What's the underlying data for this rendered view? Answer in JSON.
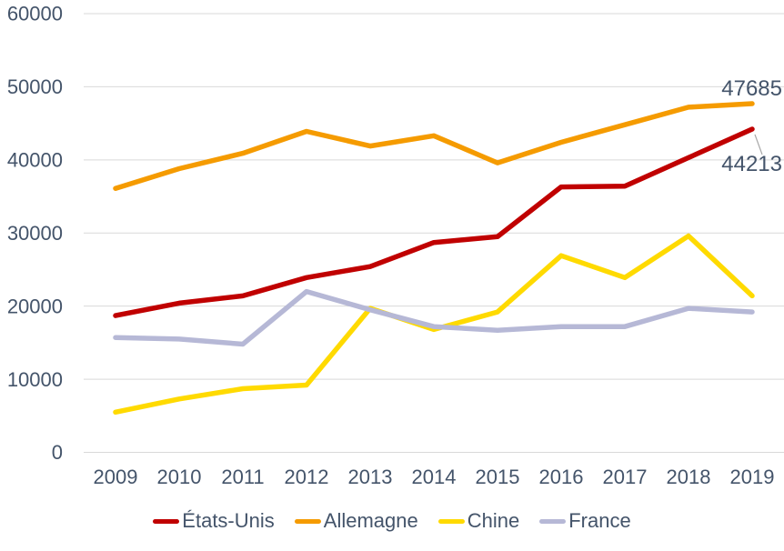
{
  "chart_data": {
    "type": "line",
    "x": [
      "2009",
      "2010",
      "2011",
      "2012",
      "2013",
      "2014",
      "2015",
      "2016",
      "2017",
      "2018",
      "2019"
    ],
    "series": [
      {
        "name": "États-Unis",
        "color": "#C00000",
        "values": [
          18700,
          20400,
          21400,
          23900,
          25400,
          28700,
          29500,
          36300,
          36400,
          40300,
          44213
        ]
      },
      {
        "name": "Allemagne",
        "color": "#F59B00",
        "values": [
          36100,
          38800,
          40900,
          43900,
          41900,
          43300,
          39600,
          42400,
          44800,
          47200,
          47685
        ]
      },
      {
        "name": "Chine",
        "color": "#FFDA00",
        "values": [
          5500,
          7300,
          8700,
          9200,
          19700,
          16800,
          19200,
          26900,
          23900,
          29600,
          21400
        ]
      },
      {
        "name": "France",
        "color": "#B6B8D6",
        "values": [
          15700,
          15500,
          14800,
          22000,
          19500,
          17200,
          16700,
          17200,
          17200,
          19700,
          19200
        ]
      }
    ],
    "title": "",
    "xlabel": "",
    "ylabel": "",
    "ylim": [
      0,
      60000
    ],
    "yticks": [
      0,
      10000,
      20000,
      30000,
      40000,
      50000,
      60000
    ],
    "ytick_labels": [
      "0",
      "10000",
      "20000",
      "30000",
      "40000",
      "50000",
      "60000"
    ],
    "grid": true,
    "legend_position": "bottom",
    "annotations": [
      {
        "text": "47685",
        "series": 1,
        "point": 10,
        "position": "above",
        "leader": false
      },
      {
        "text": "44213",
        "series": 0,
        "point": 10,
        "position": "below",
        "leader": true
      }
    ],
    "colors": {
      "axis_text": "#44546A",
      "gridline": "#D9D9D9",
      "leader_line": "#A6A6A6",
      "background": "#FFFFFF"
    }
  }
}
